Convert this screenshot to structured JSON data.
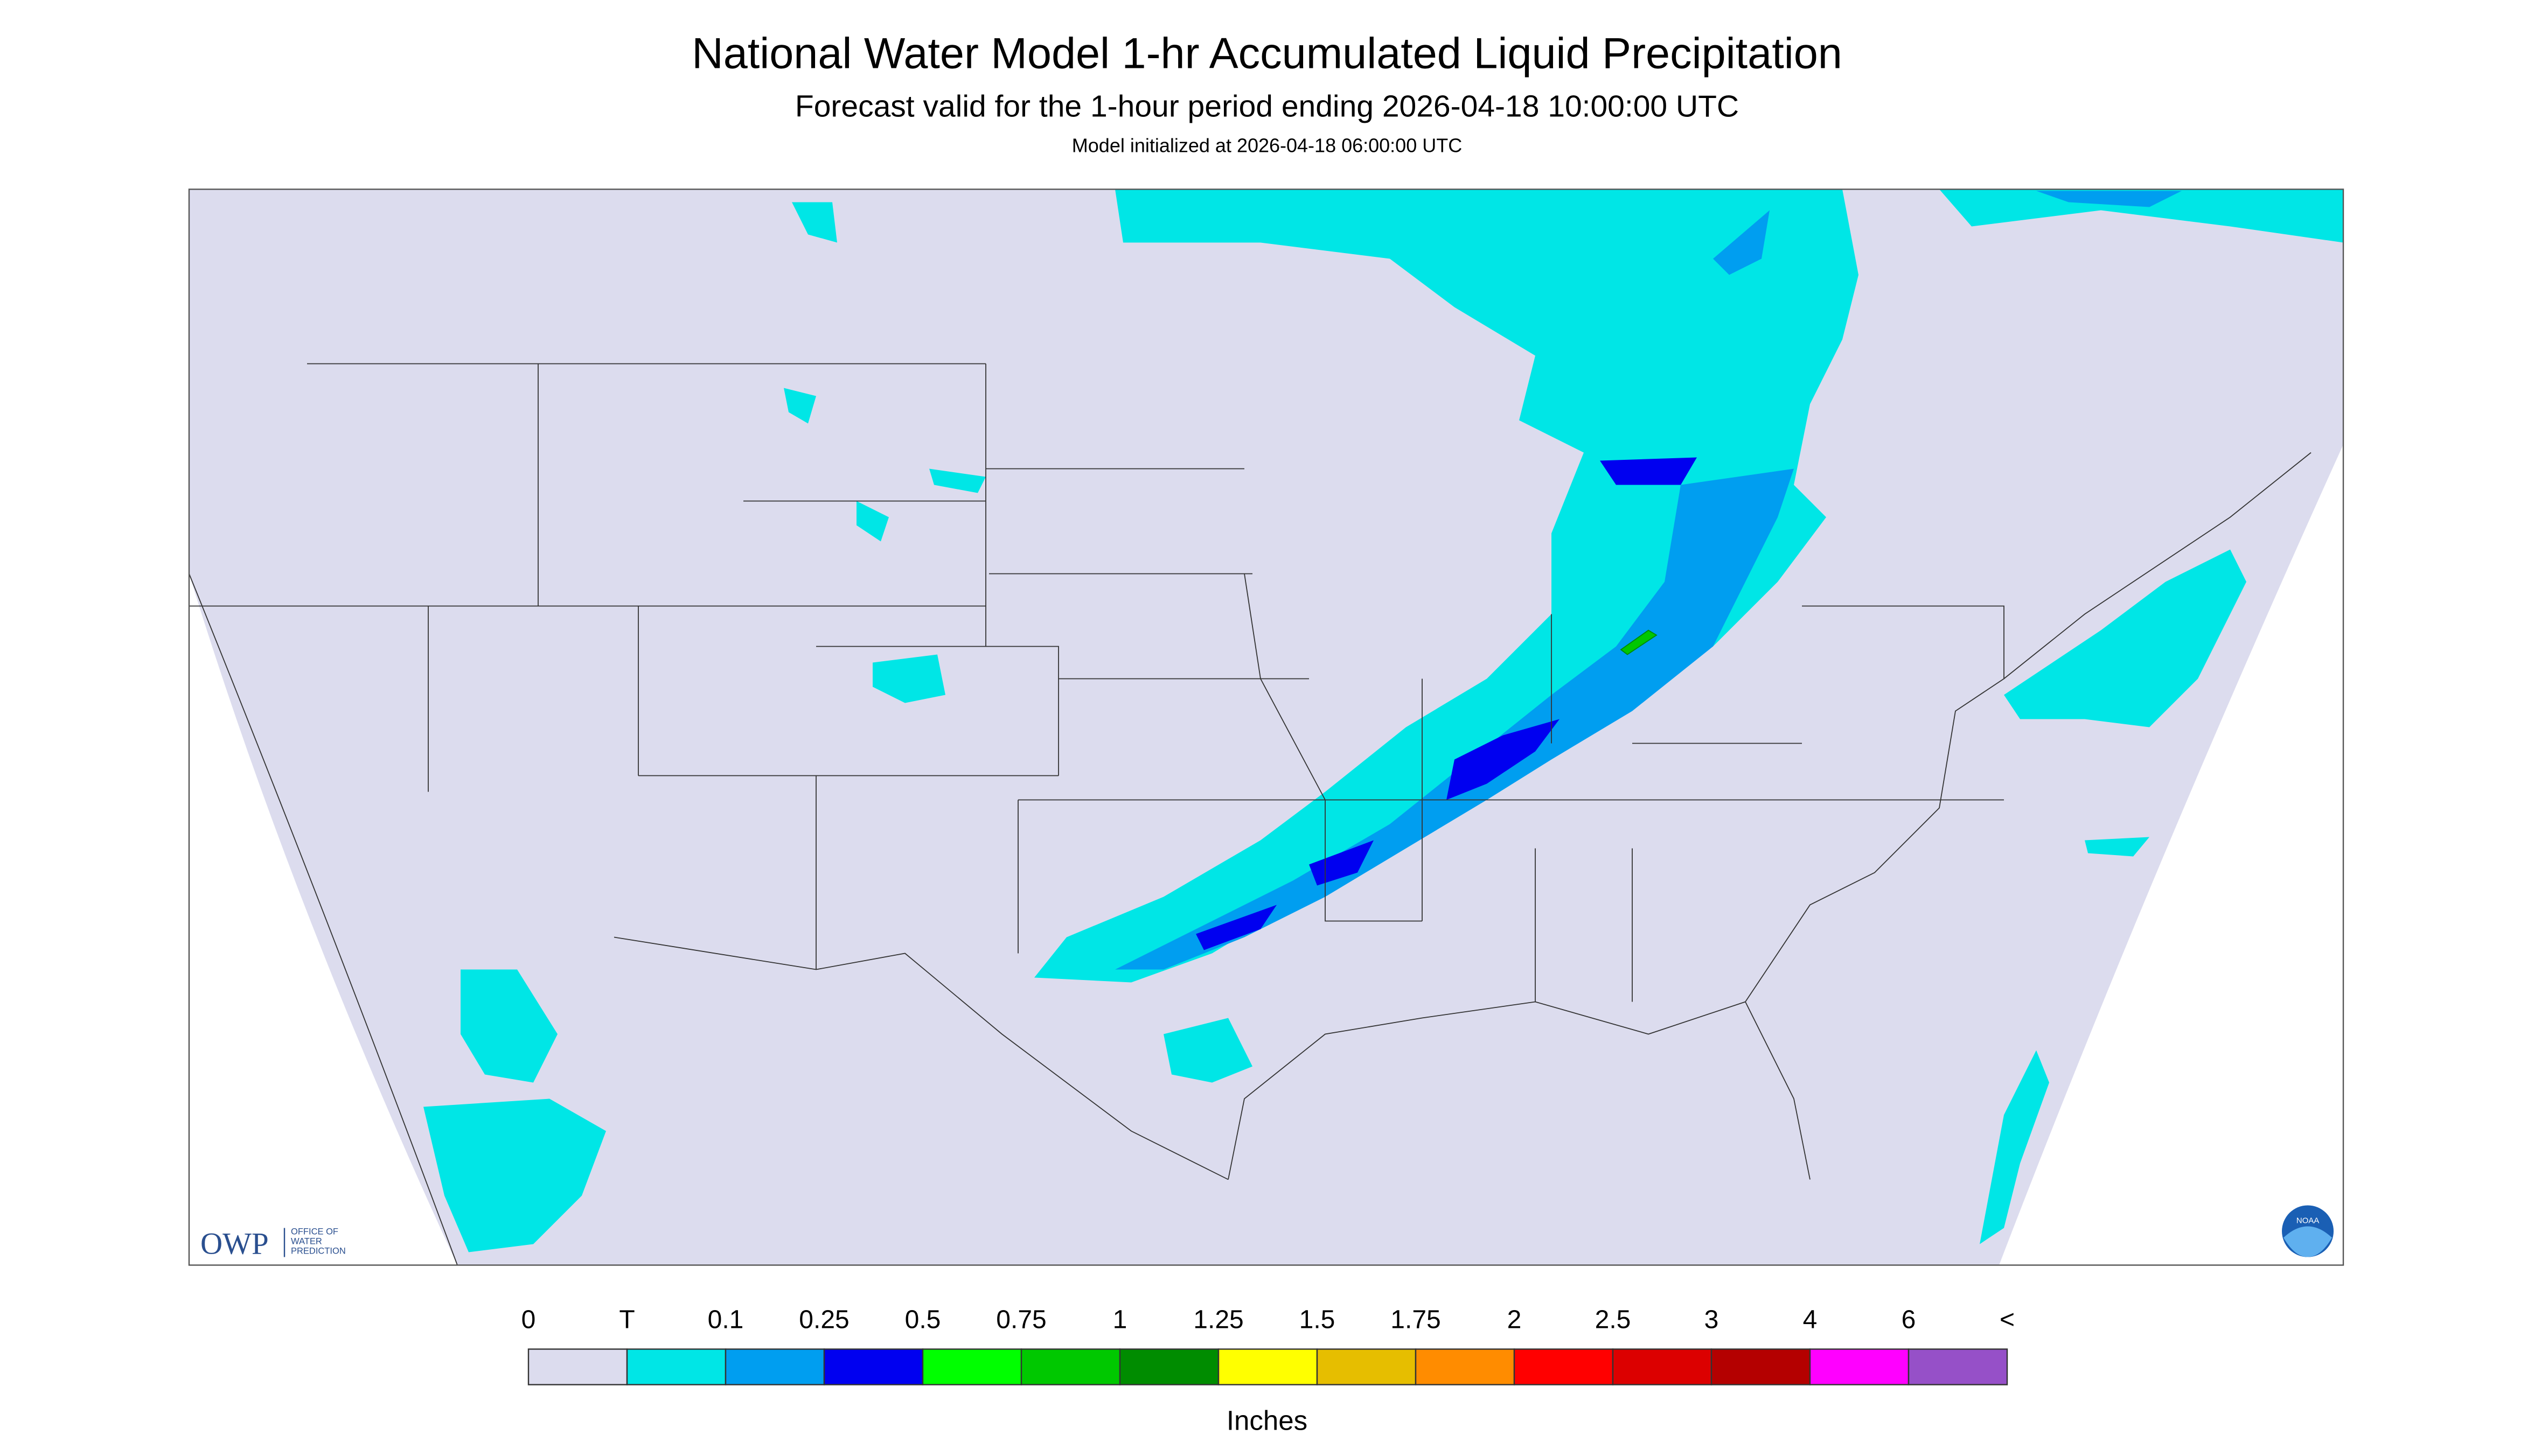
{
  "header": {
    "title": "National Water Model 1-hr Accumulated Liquid Precipitation",
    "subtitle": "Forecast valid for the 1-hour period ending 2026-04-18 10:00:00 UTC",
    "note": "Model initialized at 2026-04-18 06:00:00 UTC"
  },
  "logos": {
    "owp": "OWP",
    "owp_text": [
      "OFFICE OF",
      "WATER",
      "PREDICTION"
    ],
    "noaa": "NOAA"
  },
  "legend": {
    "labels": [
      "0",
      "T",
      "0.1",
      "0.25",
      "0.5",
      "0.75",
      "1",
      "1.25",
      "1.5",
      "1.75",
      "2",
      "2.5",
      "3",
      "4",
      "6",
      "<"
    ],
    "colors": [
      "#dcdcee",
      "#00e6e6",
      "#009ef0",
      "#0000f0",
      "#00ff00",
      "#00c800",
      "#008c00",
      "#ffff00",
      "#e6be00",
      "#ff8c00",
      "#ff0000",
      "#dc0000",
      "#b40000",
      "#ff00ff",
      "#9650c8"
    ],
    "unit": "Inches"
  }
}
